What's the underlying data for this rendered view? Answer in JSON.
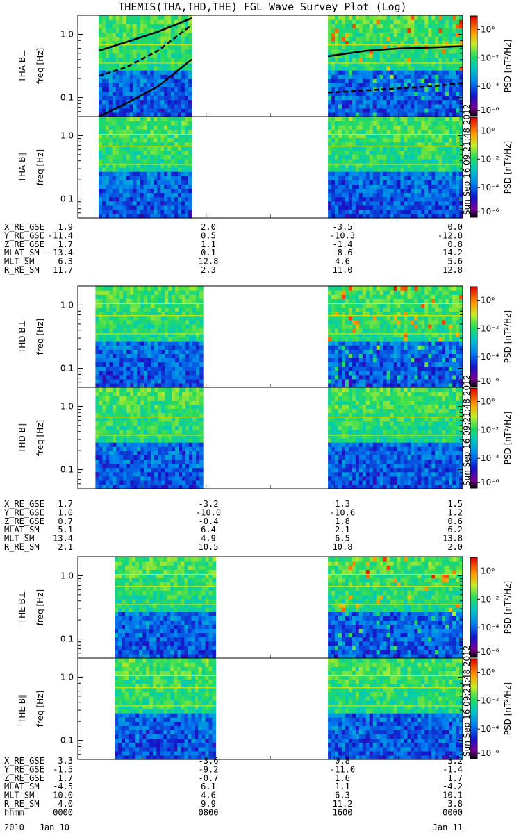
{
  "title": "THEMIS(THA,THD,THE) FGL Wave Survey Plot (Log)",
  "colorbar": {
    "label": "PSD [nT²/Hz]",
    "ticks": [
      "10⁰",
      "10⁻²",
      "10⁻⁴",
      "10⁻⁶"
    ],
    "stamp": "Sun Sep 16 09:21:48 2012"
  },
  "chart_data": [
    {
      "type": "heatmap",
      "probe": "THA",
      "ylabel_probe": "THA B⊥",
      "ylabel_unit": "freq [Hz]",
      "yscale": "log",
      "ylim": [
        0.05,
        2.0
      ],
      "yticks": [
        "1.0",
        "0.1"
      ],
      "x_unit": "hours",
      "xlim": [
        0,
        24
      ],
      "segments": [
        [
          1.3,
          7.1
        ],
        [
          15.6,
          24
        ]
      ],
      "fce_curves": [
        {
          "style": "solid",
          "x": [
            1.3,
            3,
            5,
            7.1,
            15.6,
            18,
            20,
            22,
            24
          ],
          "y": [
            0.55,
            0.75,
            1.1,
            1.8,
            0.45,
            0.55,
            0.6,
            0.62,
            0.65
          ]
        },
        {
          "style": "dashed",
          "x": [
            1.3,
            3,
            5,
            7.1,
            15.6,
            18,
            20,
            22,
            24
          ],
          "y": [
            0.22,
            0.3,
            0.55,
            1.4,
            0.12,
            0.13,
            0.14,
            0.15,
            0.17
          ]
        },
        {
          "style": "solid",
          "x": [
            1.3,
            3,
            5,
            7.1
          ],
          "y": [
            0.05,
            0.08,
            0.15,
            0.4
          ]
        }
      ],
      "psd_range_log10": [
        -6,
        1
      ]
    },
    {
      "type": "heatmap",
      "probe": "THA",
      "ylabel_probe": "THA B∥",
      "ylabel_unit": "freq [Hz]",
      "yscale": "log",
      "ylim": [
        0.05,
        2.0
      ],
      "yticks": [
        "1.0",
        "0.1"
      ],
      "x_unit": "hours",
      "xlim": [
        0,
        24
      ],
      "segments": [
        [
          1.3,
          7.1
        ],
        [
          15.6,
          24
        ]
      ],
      "psd_range_log10": [
        -6,
        1
      ]
    },
    {
      "type": "heatmap",
      "probe": "THD",
      "ylabel_probe": "THD B⊥",
      "ylabel_unit": "freq [Hz]",
      "yscale": "log",
      "ylim": [
        0.05,
        2.0
      ],
      "yticks": [
        "1.0",
        "0.1"
      ],
      "x_unit": "hours",
      "xlim": [
        0,
        24
      ],
      "segments": [
        [
          1.1,
          7.8
        ],
        [
          15.6,
          24
        ]
      ],
      "psd_range_log10": [
        -6,
        1
      ]
    },
    {
      "type": "heatmap",
      "probe": "THD",
      "ylabel_probe": "THD B∥",
      "ylabel_unit": "freq [Hz]",
      "yscale": "log",
      "ylim": [
        0.05,
        2.0
      ],
      "yticks": [
        "1.0",
        "0.1"
      ],
      "x_unit": "hours",
      "xlim": [
        0,
        24
      ],
      "segments": [
        [
          1.1,
          7.8
        ],
        [
          15.6,
          24
        ]
      ],
      "psd_range_log10": [
        -6,
        1
      ]
    },
    {
      "type": "heatmap",
      "probe": "THE",
      "ylabel_probe": "THE B⊥",
      "ylabel_unit": "freq [Hz]",
      "yscale": "log",
      "ylim": [
        0.05,
        2.0
      ],
      "yticks": [
        "1.0",
        "0.1"
      ],
      "x_unit": "hours",
      "xlim": [
        0,
        24
      ],
      "segments": [
        [
          2.3,
          8.6
        ],
        [
          15.6,
          24
        ]
      ],
      "psd_range_log10": [
        -6,
        1
      ]
    },
    {
      "type": "heatmap",
      "probe": "THE",
      "ylabel_probe": "THE B∥",
      "ylabel_unit": "freq [Hz]",
      "yscale": "log",
      "ylim": [
        0.05,
        2.0
      ],
      "yticks": [
        "1.0",
        "0.1"
      ],
      "x_unit": "hours",
      "xlim": [
        0,
        24
      ],
      "segments": [
        [
          2.3,
          8.6
        ],
        [
          15.6,
          24
        ]
      ],
      "psd_range_log10": [
        -6,
        1
      ]
    }
  ],
  "ephemeris": [
    {
      "probe": "THA",
      "rows": [
        {
          "name": "X_RE_GSE",
          "values": [
            "1.9",
            "2.0",
            "-3.5",
            "0.0"
          ]
        },
        {
          "name": "Y_RE_GSE",
          "values": [
            "-11.4",
            "0.5",
            "-10.3",
            "-12.8"
          ]
        },
        {
          "name": "Z_RE_GSE",
          "values": [
            "1.7",
            "1.1",
            "-1.4",
            "0.8"
          ]
        },
        {
          "name": "MLAT_SM",
          "values": [
            "-13.4",
            "0.1",
            "-8.6",
            "-14.2"
          ]
        },
        {
          "name": "MLT_SM",
          "values": [
            "6.3",
            "12.8",
            "4.6",
            "5.6"
          ]
        },
        {
          "name": "R_RE_SM",
          "values": [
            "11.7",
            "2.3",
            "11.0",
            "12.8"
          ]
        }
      ]
    },
    {
      "probe": "THD",
      "rows": [
        {
          "name": "X_RE_GSE",
          "values": [
            "1.7",
            "-3.2",
            "1.3",
            "1.5"
          ]
        },
        {
          "name": "Y_RE_GSE",
          "values": [
            "1.0",
            "-10.0",
            "-10.6",
            "1.2"
          ]
        },
        {
          "name": "Z_RE_GSE",
          "values": [
            "0.7",
            "-0.4",
            "1.8",
            "0.6"
          ]
        },
        {
          "name": "MLAT_SM",
          "values": [
            "5.1",
            "6.4",
            "2.1",
            "6.2"
          ]
        },
        {
          "name": "MLT_SM",
          "values": [
            "13.4",
            "4.9",
            "6.5",
            "13.8"
          ]
        },
        {
          "name": "R_RE_SM",
          "values": [
            "2.1",
            "10.5",
            "10.8",
            "2.0"
          ]
        }
      ]
    },
    {
      "probe": "THE",
      "rows": [
        {
          "name": "X_RE_GSE",
          "values": [
            "3.3",
            "-3.6",
            "0.8",
            "3.2"
          ]
        },
        {
          "name": "Y_RE_GSE",
          "values": [
            "-1.5",
            "-9.2",
            "-11.0",
            "-1.4"
          ]
        },
        {
          "name": "Z_RE_GSE",
          "values": [
            "1.7",
            "-0.7",
            "1.6",
            "1.7"
          ]
        },
        {
          "name": "MLAT_SM",
          "values": [
            "-4.5",
            "6.1",
            "1.1",
            "-4.2"
          ]
        },
        {
          "name": "MLT_SM",
          "values": [
            "10.0",
            "4.6",
            "6.3",
            "10.1"
          ]
        },
        {
          "name": "R_RE_SM",
          "values": [
            "4.0",
            "9.9",
            "11.2",
            "3.8"
          ]
        },
        {
          "name": "hhmm",
          "values": [
            "0000",
            "0800",
            "1600",
            "0000"
          ]
        }
      ]
    }
  ],
  "date_labels": {
    "start_year": "2010",
    "start_date": "Jan 10",
    "end_date": "Jan 11"
  }
}
